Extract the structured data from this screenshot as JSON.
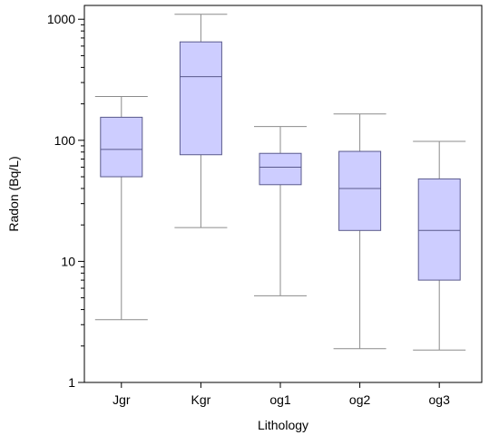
{
  "chart_data": {
    "type": "box",
    "xlabel": "Lithology",
    "ylabel": "Radon (Bq/L)",
    "yscale": "log",
    "ylim": [
      1,
      1300
    ],
    "yticks": [
      1,
      10,
      100,
      1000
    ],
    "ytick_labels": [
      "1",
      "10",
      "100",
      "1000"
    ],
    "categories": [
      "Jgr",
      "Kgr",
      "og1",
      "og2",
      "og3"
    ],
    "boxes": [
      {
        "category": "Jgr",
        "min": 3.3,
        "q1": 50,
        "median": 84,
        "q3": 155,
        "max": 230
      },
      {
        "category": "Kgr",
        "min": 19,
        "q1": 76,
        "median": 335,
        "q3": 650,
        "max": 1100
      },
      {
        "category": "og1",
        "min": 5.2,
        "q1": 43,
        "median": 60,
        "q3": 78,
        "max": 130
      },
      {
        "category": "og2",
        "min": 1.9,
        "q1": 18,
        "median": 40,
        "q3": 81,
        "max": 165
      },
      {
        "category": "og3",
        "min": 1.85,
        "q1": 7,
        "median": 18,
        "q3": 48,
        "max": 98
      }
    ],
    "grid": false,
    "colors": {
      "box_fill": "#cdcdff",
      "box_edge": "#5a5a8c",
      "whisker": "#8c8c8c",
      "axis": "#000000"
    }
  }
}
